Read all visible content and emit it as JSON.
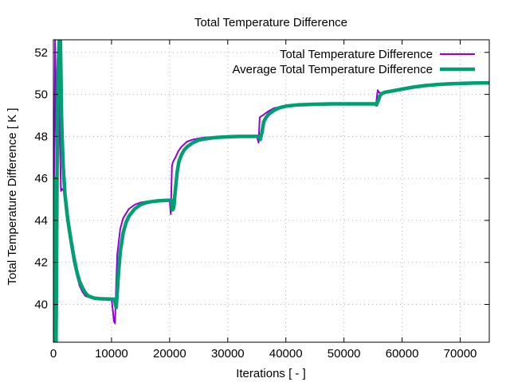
{
  "chart_data": {
    "type": "line",
    "title": "Total Temperature Difference",
    "xlabel": "Iterations [ - ]",
    "ylabel": "Total Temperature Difference [ K ]",
    "xlim": [
      0,
      75000
    ],
    "ylim": [
      38.2,
      52.6
    ],
    "xticks": [
      0,
      10000,
      20000,
      30000,
      40000,
      50000,
      60000,
      70000
    ],
    "yticks": [
      40,
      42,
      44,
      46,
      48,
      50,
      52
    ],
    "grid": true,
    "legend_position": "top-right",
    "series": [
      {
        "name": "Total Temperature Difference",
        "color": "#9400d3",
        "x": [
          0,
          300,
          500,
          700,
          900,
          1100,
          1300,
          1500,
          1800,
          2200,
          2600,
          3000,
          3500,
          4000,
          4500,
          5000,
          5500,
          6000,
          7000,
          8000,
          9000,
          10000,
          10200,
          10400,
          10600,
          10800,
          11000,
          11500,
          12000,
          13000,
          14000,
          15000,
          16000,
          17000,
          18000,
          19000,
          20000,
          20200,
          20400,
          20600,
          21000,
          21500,
          22000,
          23000,
          24000,
          25000,
          26000,
          28000,
          30000,
          32000,
          34000,
          35000,
          35300,
          35500,
          35700,
          36000,
          37000,
          38000,
          40000,
          42000,
          45000,
          48000,
          50000,
          52000,
          54000,
          55000,
          55500,
          55800,
          56000,
          56500,
          57000,
          58000,
          60000,
          62000,
          64000,
          66000,
          68000,
          70000,
          72000,
          75000
        ],
        "y": [
          41.5,
          52.6,
          47.5,
          51.5,
          52.6,
          48.0,
          45.4,
          45.5,
          45.4,
          44.3,
          43.5,
          42.8,
          42.0,
          41.4,
          40.9,
          40.6,
          40.4,
          40.35,
          40.3,
          40.28,
          40.27,
          40.27,
          39.8,
          39.2,
          39.1,
          41.0,
          42.4,
          43.6,
          44.1,
          44.55,
          44.75,
          44.85,
          44.9,
          44.93,
          44.95,
          44.96,
          44.97,
          44.3,
          46.6,
          46.8,
          47.0,
          47.3,
          47.5,
          47.75,
          47.85,
          47.9,
          47.95,
          47.98,
          48.0,
          48.0,
          48.0,
          48.0,
          47.7,
          48.9,
          48.95,
          49.0,
          49.2,
          49.35,
          49.45,
          49.5,
          49.52,
          49.55,
          49.55,
          49.55,
          49.55,
          49.55,
          49.5,
          50.2,
          50.1,
          50.05,
          50.1,
          50.15,
          50.25,
          50.35,
          50.42,
          50.47,
          50.5,
          50.52,
          50.54,
          50.55
        ]
      },
      {
        "name": "Average Total Temperature Difference",
        "color": "#009e73",
        "x": [
          0,
          100,
          200,
          300,
          350,
          450,
          550,
          650,
          800,
          1000,
          1200,
          1400,
          1500,
          1700,
          2000,
          2500,
          3000,
          3500,
          4000,
          4500,
          5000,
          5500,
          6000,
          7000,
          8000,
          9000,
          10000,
          10400,
          10600,
          10800,
          11000,
          11200,
          11500,
          12000,
          12500,
          13000,
          14000,
          15000,
          16000,
          17000,
          18000,
          19000,
          20000,
          20300,
          20500,
          20700,
          21000,
          21300,
          21600,
          22000,
          22500,
          23000,
          24000,
          25000,
          26000,
          28000,
          30000,
          32000,
          34000,
          35000,
          35300,
          35600,
          35900,
          36200,
          36600,
          37000,
          38000,
          39000,
          40000,
          42000,
          45000,
          48000,
          50000,
          52000,
          54000,
          55000,
          55300,
          55600,
          55900,
          56200,
          56600,
          57000,
          58000,
          60000,
          62000,
          64000,
          66000,
          68000,
          70000,
          72000,
          75000
        ],
        "y": [
          40.0,
          38.2,
          39.5,
          46.0,
          38.3,
          38.2,
          42.0,
          47.0,
          51.0,
          52.6,
          52.6,
          49.0,
          48.0,
          46.5,
          45.2,
          44.0,
          43.1,
          42.3,
          41.6,
          41.1,
          40.8,
          40.55,
          40.4,
          40.3,
          40.27,
          40.26,
          40.25,
          40.25,
          40.1,
          39.85,
          40.6,
          41.5,
          42.5,
          43.4,
          43.9,
          44.2,
          44.55,
          44.75,
          44.85,
          44.9,
          44.93,
          44.95,
          44.96,
          44.96,
          44.5,
          44.6,
          45.5,
          46.3,
          46.8,
          47.1,
          47.35,
          47.5,
          47.7,
          47.82,
          47.88,
          47.95,
          47.98,
          48.0,
          48.0,
          48.0,
          48.0,
          47.85,
          48.2,
          48.7,
          48.9,
          49.05,
          49.25,
          49.37,
          49.44,
          49.5,
          49.53,
          49.55,
          49.55,
          49.55,
          49.55,
          49.55,
          49.55,
          49.5,
          49.7,
          49.95,
          50.05,
          50.1,
          50.15,
          50.25,
          50.35,
          50.42,
          50.47,
          50.5,
          50.52,
          50.54,
          50.55
        ]
      }
    ]
  }
}
